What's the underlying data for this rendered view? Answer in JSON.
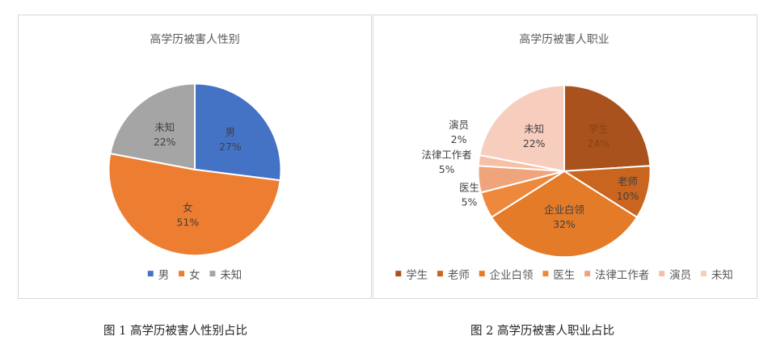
{
  "chart_data": [
    {
      "type": "pie",
      "title": "高学历被害人性别",
      "slices": [
        {
          "name": "男",
          "value": 27,
          "label": "27%",
          "color": "#4472C4"
        },
        {
          "name": "女",
          "value": 51,
          "label": "51%",
          "color": "#ED7D31"
        },
        {
          "name": "未知",
          "value": 22,
          "label": "22%",
          "color": "#A5A5A5"
        }
      ],
      "start_angle_deg": 0,
      "legend_position": "bottom",
      "label_position": "inside"
    },
    {
      "type": "pie",
      "title": "高学历被害人职业",
      "slices": [
        {
          "name": "学生",
          "value": 24,
          "label": "24%",
          "color": "#A9521D"
        },
        {
          "name": "老师",
          "value": 10,
          "label": "10%",
          "color": "#C9651F"
        },
        {
          "name": "企业白领",
          "value": 32,
          "label": "32%",
          "color": "#E37B29"
        },
        {
          "name": "医生",
          "value": 5,
          "label": "5%",
          "color": "#ED883C"
        },
        {
          "name": "法律工作者",
          "value": 5,
          "label": "5%",
          "color": "#F0A47B"
        },
        {
          "name": "演员",
          "value": 2,
          "label": "2%",
          "color": "#F5C0A6"
        },
        {
          "name": "未知",
          "value": 22,
          "label": "22%",
          "color": "#F7CDBD"
        }
      ],
      "start_angle_deg": 0,
      "legend_position": "bottom",
      "label_position": "inside-and-outside"
    }
  ],
  "captions": {
    "fig1": "图 1  高学历被害人性别占比",
    "fig2": "图 2  高学历被害人职业占比"
  }
}
